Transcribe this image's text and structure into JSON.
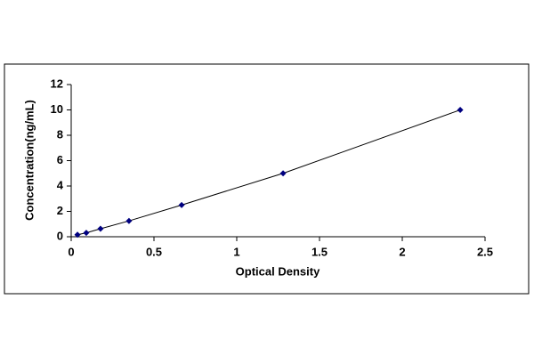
{
  "chart_data": {
    "type": "scatter-line",
    "x_label": "Optical Density",
    "y_label": "Concentration(ng/mL)",
    "x": [
      0.038,
      0.091,
      0.177,
      0.349,
      0.667,
      1.28,
      2.35
    ],
    "values": [
      0.16,
      0.31,
      0.63,
      1.25,
      2.5,
      5,
      10
    ],
    "color": "#000080",
    "line_color": "#000000",
    "xlim": [
      0,
      2.5
    ],
    "xticks": [
      0,
      0.5,
      1,
      1.5,
      2,
      2.5
    ],
    "ylim": [
      0,
      12
    ],
    "yticks": [
      0,
      2,
      4,
      6,
      8,
      10,
      12
    ],
    "grid": false
  }
}
